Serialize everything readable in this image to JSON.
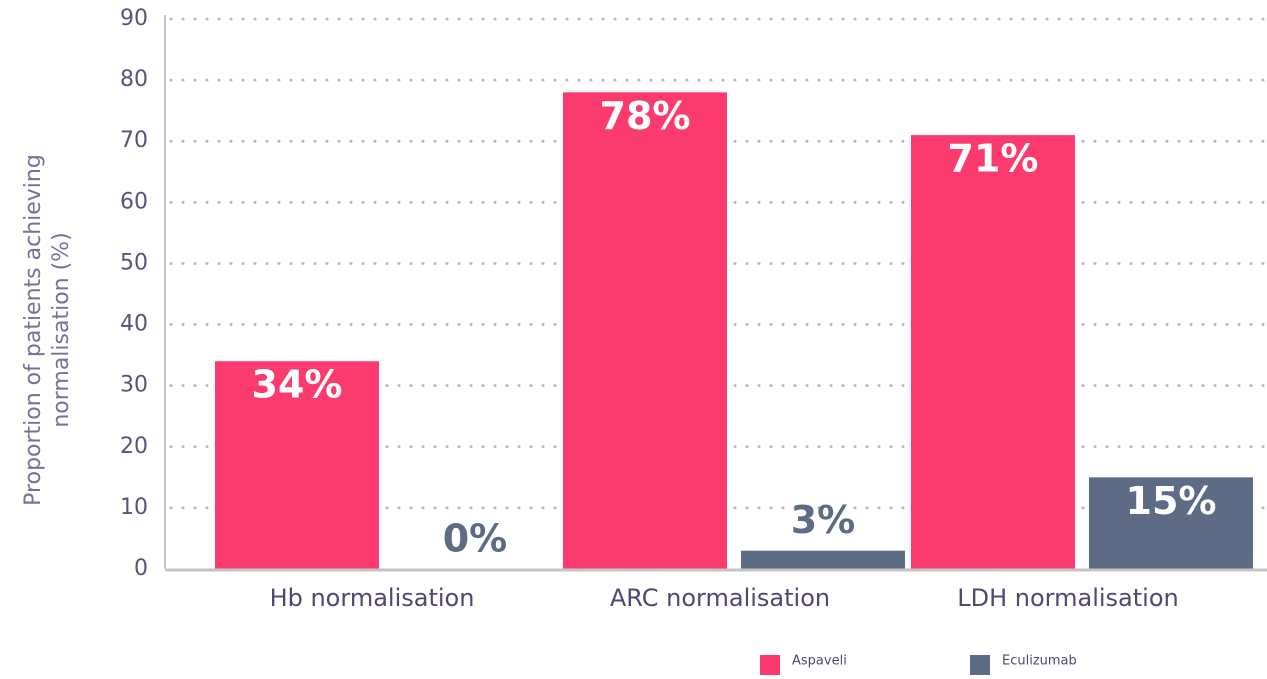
{
  "chart_data": {
    "type": "bar",
    "ylabel": [
      "Proportion of patients achieving",
      "normalisation (%)"
    ],
    "categories": [
      "Hb normalisation",
      "ARC normalisation",
      "LDH normalisation"
    ],
    "series": [
      {
        "name": "Aspaveli",
        "color": "#fb3a6e",
        "values": [
          34,
          78,
          71
        ],
        "value_labels": [
          "34%",
          "78%",
          "71%"
        ]
      },
      {
        "name": "Eculizumab",
        "color": "#5d6b85",
        "values": [
          0,
          3,
          15
        ],
        "value_labels": [
          "0%",
          "3%",
          "15%"
        ]
      }
    ],
    "ylim": [
      0,
      90
    ],
    "yticks": [
      0,
      10,
      20,
      30,
      40,
      50,
      60,
      70,
      80,
      90
    ],
    "grid": true
  }
}
